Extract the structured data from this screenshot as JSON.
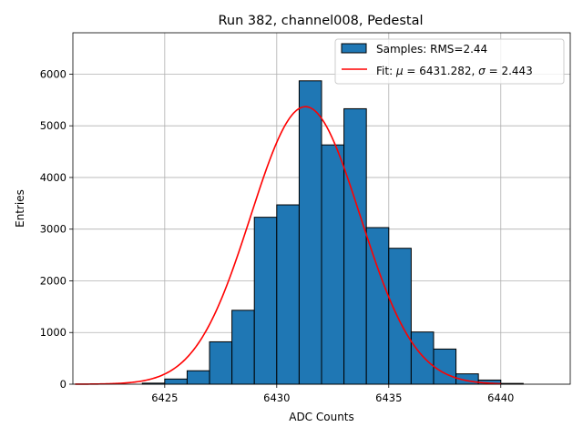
{
  "chart_data": {
    "type": "bar",
    "title": "Run 382, channel008, Pedestal",
    "xlabel": "ADC Counts",
    "ylabel": "Entries",
    "xlim": [
      6420.9,
      6443.1
    ],
    "ylim": [
      0,
      6800
    ],
    "grid": true,
    "legend_position": "top-right",
    "xticks": [
      6425,
      6430,
      6435,
      6440
    ],
    "yticks": [
      0,
      1000,
      2000,
      3000,
      4000,
      5000,
      6000
    ],
    "histogram": {
      "name": "Samples: RMS=2.44",
      "color": "#1f77b4",
      "edgecolor": "#000000",
      "bin_width": 1,
      "bins": [
        {
          "x": 6424,
          "value": 20
        },
        {
          "x": 6425,
          "value": 100
        },
        {
          "x": 6426,
          "value": 260
        },
        {
          "x": 6427,
          "value": 820
        },
        {
          "x": 6428,
          "value": 1430
        },
        {
          "x": 6429,
          "value": 3230
        },
        {
          "x": 6430,
          "value": 3470
        },
        {
          "x": 6431,
          "value": 5870
        },
        {
          "x": 6432,
          "value": 4630
        },
        {
          "x": 6433,
          "value": 5330
        },
        {
          "x": 6434,
          "value": 3030
        },
        {
          "x": 6435,
          "value": 2630
        },
        {
          "x": 6436,
          "value": 1010
        },
        {
          "x": 6437,
          "value": 680
        },
        {
          "x": 6438,
          "value": 200
        },
        {
          "x": 6439,
          "value": 80
        },
        {
          "x": 6440,
          "value": 15
        }
      ]
    },
    "fit": {
      "name": "Fit: μ = 6431.282, σ = 2.443",
      "name_prefix": "Fit: ",
      "name_mu": "μ",
      "name_mid": " = 6431.282, ",
      "name_sigma": "σ",
      "name_suffix": " = 2.443",
      "color": "#ff0000",
      "mu": 6431.282,
      "sigma": 2.443,
      "amplitude": 5370,
      "x_range": [
        6421,
        6440
      ]
    }
  }
}
